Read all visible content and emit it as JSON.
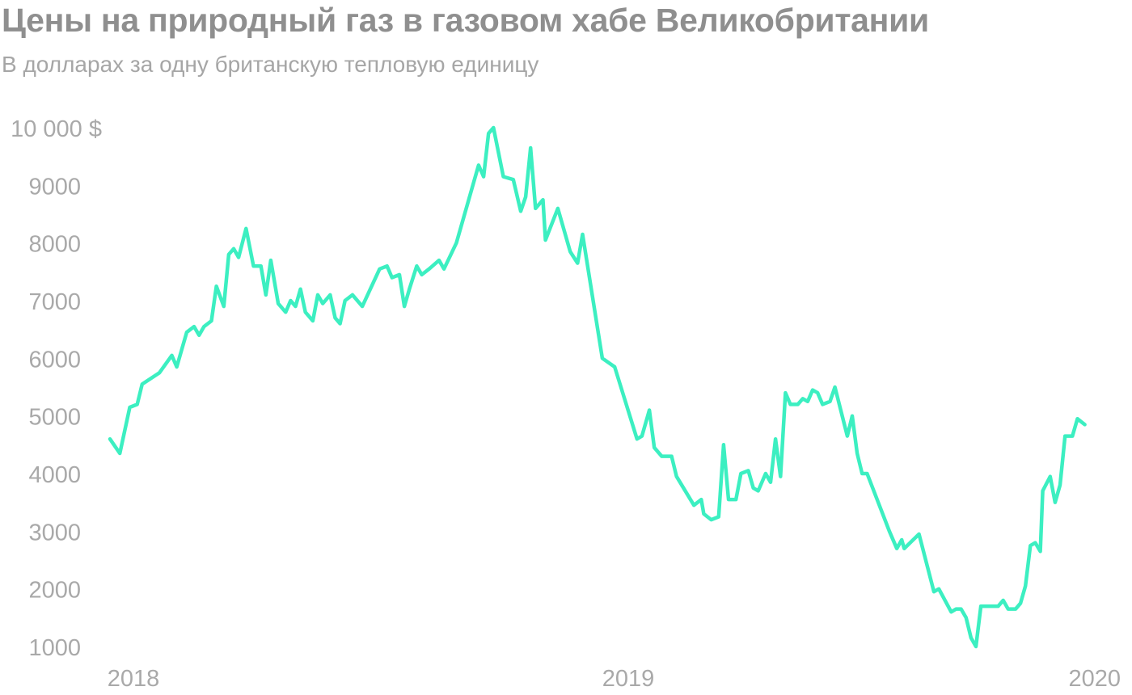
{
  "chart_data": {
    "type": "line",
    "title": "Цены на природный газ в газовом хабе Великобритании",
    "subtitle": "В долларах за одну британскую тепловую единицу",
    "xlabel": "",
    "ylabel": "",
    "xlim": [
      2018.0,
      2020.0
    ],
    "ylim": [
      1000,
      10000
    ],
    "y_ticks": [
      {
        "value": 10000,
        "label": "10 000 $"
      },
      {
        "value": 9000,
        "label": "9000"
      },
      {
        "value": 8000,
        "label": "8000"
      },
      {
        "value": 7000,
        "label": "7000"
      },
      {
        "value": 6000,
        "label": "6000"
      },
      {
        "value": 5000,
        "label": "5000"
      },
      {
        "value": 4000,
        "label": "4000"
      },
      {
        "value": 3000,
        "label": "3000"
      },
      {
        "value": 2000,
        "label": "2000"
      },
      {
        "value": 1000,
        "label": "1000"
      }
    ],
    "x_ticks": [
      {
        "value": 2018.0,
        "label": "2018"
      },
      {
        "value": 2019.0,
        "label": "2019"
      },
      {
        "value": 2020.0,
        "label": "2020"
      }
    ],
    "grid": false,
    "legend": "none",
    "line_color": "#3cefc1",
    "series": [
      {
        "values": [
          [
            2018.0,
            4600
          ],
          [
            2018.02,
            4350
          ],
          [
            2018.04,
            5150
          ],
          [
            2018.055,
            5200
          ],
          [
            2018.065,
            5550
          ],
          [
            2018.1,
            5750
          ],
          [
            2018.125,
            6050
          ],
          [
            2018.135,
            5850
          ],
          [
            2018.155,
            6450
          ],
          [
            2018.17,
            6550
          ],
          [
            2018.18,
            6400
          ],
          [
            2018.19,
            6550
          ],
          [
            2018.205,
            6650
          ],
          [
            2018.215,
            7250
          ],
          [
            2018.23,
            6900
          ],
          [
            2018.24,
            7800
          ],
          [
            2018.25,
            7900
          ],
          [
            2018.26,
            7750
          ],
          [
            2018.275,
            8250
          ],
          [
            2018.29,
            7600
          ],
          [
            2018.305,
            7600
          ],
          [
            2018.315,
            7100
          ],
          [
            2018.325,
            7700
          ],
          [
            2018.34,
            6950
          ],
          [
            2018.355,
            6800
          ],
          [
            2018.365,
            7000
          ],
          [
            2018.375,
            6900
          ],
          [
            2018.385,
            7200
          ],
          [
            2018.395,
            6800
          ],
          [
            2018.41,
            6650
          ],
          [
            2018.42,
            7100
          ],
          [
            2018.43,
            6950
          ],
          [
            2018.445,
            7100
          ],
          [
            2018.455,
            6700
          ],
          [
            2018.465,
            6600
          ],
          [
            2018.475,
            7000
          ],
          [
            2018.49,
            7100
          ],
          [
            2018.51,
            6900
          ],
          [
            2018.545,
            7550
          ],
          [
            2018.56,
            7600
          ],
          [
            2018.57,
            7400
          ],
          [
            2018.585,
            7450
          ],
          [
            2018.595,
            6900
          ],
          [
            2018.605,
            7200
          ],
          [
            2018.62,
            7600
          ],
          [
            2018.63,
            7450
          ],
          [
            2018.645,
            7550
          ],
          [
            2018.665,
            7700
          ],
          [
            2018.675,
            7550
          ],
          [
            2018.7,
            8000
          ],
          [
            2018.745,
            9350
          ],
          [
            2018.755,
            9150
          ],
          [
            2018.765,
            9900
          ],
          [
            2018.775,
            10000
          ],
          [
            2018.795,
            9150
          ],
          [
            2018.815,
            9100
          ],
          [
            2018.83,
            8550
          ],
          [
            2018.84,
            8800
          ],
          [
            2018.85,
            9650
          ],
          [
            2018.86,
            8600
          ],
          [
            2018.875,
            8750
          ],
          [
            2018.88,
            8050
          ],
          [
            2018.905,
            8600
          ],
          [
            2018.93,
            7850
          ],
          [
            2018.945,
            7650
          ],
          [
            2018.955,
            8150
          ],
          [
            2018.995,
            6000
          ],
          [
            2019.02,
            5850
          ],
          [
            2019.065,
            4600
          ],
          [
            2019.075,
            4650
          ],
          [
            2019.09,
            5100
          ],
          [
            2019.1,
            4450
          ],
          [
            2019.115,
            4300
          ],
          [
            2019.135,
            4300
          ],
          [
            2019.145,
            3950
          ],
          [
            2019.18,
            3450
          ],
          [
            2019.195,
            3550
          ],
          [
            2019.2,
            3300
          ],
          [
            2019.215,
            3200
          ],
          [
            2019.23,
            3250
          ],
          [
            2019.24,
            4500
          ],
          [
            2019.25,
            3550
          ],
          [
            2019.265,
            3550
          ],
          [
            2019.275,
            4000
          ],
          [
            2019.29,
            4050
          ],
          [
            2019.3,
            3750
          ],
          [
            2019.31,
            3700
          ],
          [
            2019.325,
            4000
          ],
          [
            2019.335,
            3850
          ],
          [
            2019.345,
            4600
          ],
          [
            2019.355,
            3950
          ],
          [
            2019.365,
            5400
          ],
          [
            2019.375,
            5200
          ],
          [
            2019.39,
            5200
          ],
          [
            2019.4,
            5300
          ],
          [
            2019.41,
            5250
          ],
          [
            2019.42,
            5450
          ],
          [
            2019.43,
            5400
          ],
          [
            2019.44,
            5200
          ],
          [
            2019.455,
            5250
          ],
          [
            2019.465,
            5500
          ],
          [
            2019.49,
            4650
          ],
          [
            2019.5,
            5000
          ],
          [
            2019.51,
            4350
          ],
          [
            2019.52,
            4000
          ],
          [
            2019.53,
            4000
          ],
          [
            2019.575,
            3000
          ],
          [
            2019.59,
            2700
          ],
          [
            2019.6,
            2850
          ],
          [
            2019.605,
            2700
          ],
          [
            2019.635,
            2950
          ],
          [
            2019.665,
            1950
          ],
          [
            2019.675,
            2000
          ],
          [
            2019.7,
            1600
          ],
          [
            2019.71,
            1650
          ],
          [
            2019.72,
            1650
          ],
          [
            2019.73,
            1500
          ],
          [
            2019.74,
            1150
          ],
          [
            2019.75,
            1000
          ],
          [
            2019.76,
            1700
          ],
          [
            2019.795,
            1700
          ],
          [
            2019.805,
            1800
          ],
          [
            2019.815,
            1650
          ],
          [
            2019.83,
            1650
          ],
          [
            2019.84,
            1750
          ],
          [
            2019.85,
            2050
          ],
          [
            2019.86,
            2750
          ],
          [
            2019.87,
            2800
          ],
          [
            2019.88,
            2650
          ],
          [
            2019.885,
            3700
          ],
          [
            2019.9,
            3950
          ],
          [
            2019.91,
            3500
          ],
          [
            2019.92,
            3800
          ],
          [
            2019.93,
            4650
          ],
          [
            2019.945,
            4650
          ],
          [
            2019.955,
            4950
          ],
          [
            2019.97,
            4850
          ]
        ]
      }
    ]
  }
}
